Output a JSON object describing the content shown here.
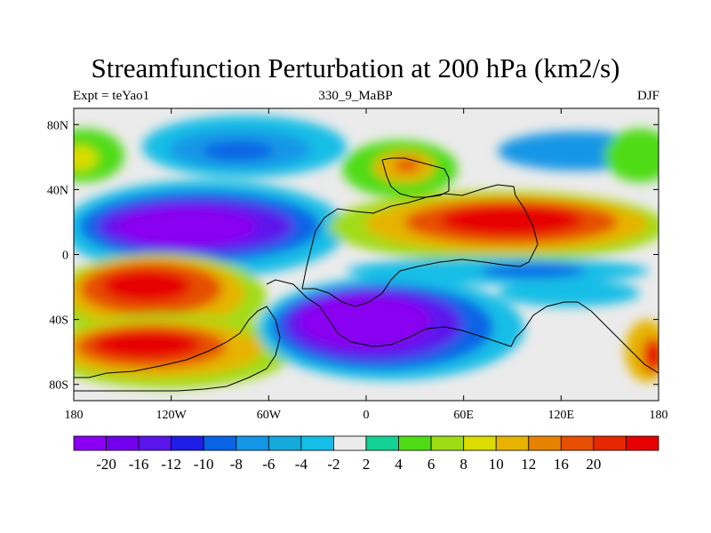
{
  "title": "Streamfunction Perturbation at 200 hPa (km2/s)",
  "subtitle_left": "Expt = teYao1",
  "subtitle_center": "330_9_MaBP",
  "subtitle_right": "DJF",
  "chart_data": {
    "type": "heatmap",
    "title": "Streamfunction Perturbation at 200 hPa (km2/s)",
    "x_ticks": [
      "180",
      "120W",
      "60W",
      "0",
      "60E",
      "120E",
      "180"
    ],
    "x_tick_values": [
      -180,
      -120,
      -60,
      0,
      60,
      120,
      180
    ],
    "y_ticks": [
      "80N",
      "40N",
      "0",
      "40S",
      "80S"
    ],
    "y_tick_values": [
      80,
      40,
      0,
      -40,
      -80
    ],
    "xlim": [
      -180,
      180
    ],
    "ylim": [
      -90,
      90
    ],
    "colorbar": {
      "labels": [
        "-20",
        "-16",
        "-12",
        "-10",
        "-8",
        "-6",
        "-4",
        "-2",
        "2",
        "4",
        "6",
        "8",
        "10",
        "12",
        "16",
        "20"
      ],
      "colors": [
        "#8a00f0",
        "#7200ee",
        "#5c14ec",
        "#1e1ee6",
        "#0a64e6",
        "#1496e6",
        "#14aadc",
        "#14bee6",
        "#ebebeb",
        "#14d296",
        "#50dc14",
        "#a0dc14",
        "#dcdc00",
        "#e6b400",
        "#e68200",
        "#e65000",
        "#e62800",
        "#e60000"
      ]
    },
    "features": [
      {
        "name": "negative center, North Pacific / America subtropics",
        "lon": -110,
        "lat": 25,
        "value": -20
      },
      {
        "name": "negative center, Arctic",
        "lon": -105,
        "lat": 65,
        "value": -10
      },
      {
        "name": "positive center, Asia",
        "lon": 95,
        "lat": 22,
        "value": 20
      },
      {
        "name": "positive center, South Pacific",
        "lon": -125,
        "lat": -20,
        "value": 20
      },
      {
        "name": "positive center, Southern Ocean",
        "lon": -125,
        "lat": -60,
        "value": 20
      },
      {
        "name": "negative center, South Atlantic / Africa",
        "lon": 10,
        "lat": -45,
        "value": -20
      },
      {
        "name": "positive center, Europe",
        "lon": 25,
        "lat": 55,
        "value": 12
      },
      {
        "name": "positive center, far SW Pacific",
        "lon": 175,
        "lat": -60,
        "value": 12
      }
    ]
  }
}
